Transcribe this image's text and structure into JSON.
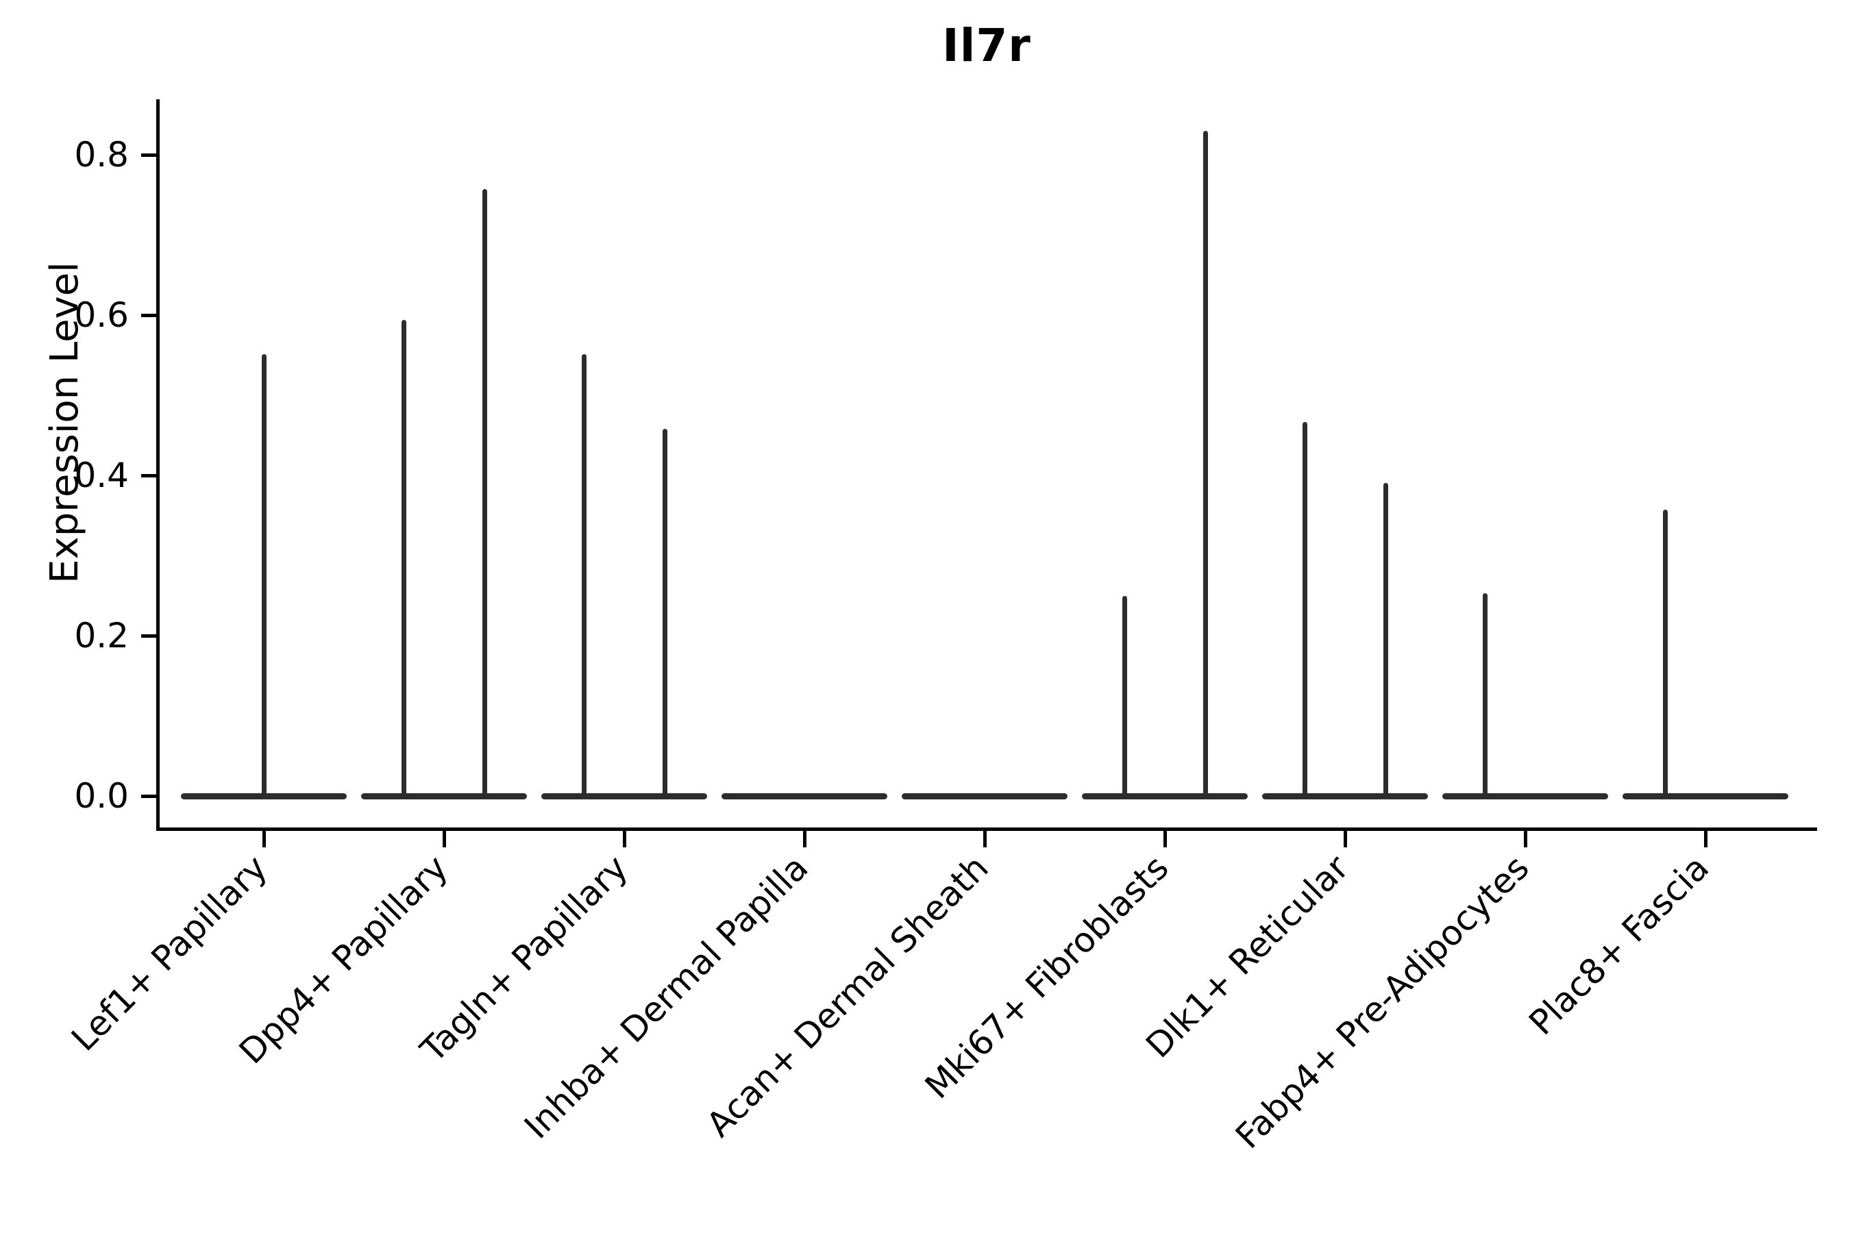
{
  "chart_data": {
    "type": "violin",
    "title": "Il7r",
    "ylabel": "Expression Level",
    "xlabel": "",
    "ylim": [
      0,
      0.87
    ],
    "yticks": [
      0.0,
      0.2,
      0.4,
      0.6,
      0.8
    ],
    "grid": false,
    "legend": false,
    "violin_color": "#2d2d2d",
    "axis_color": "#000000",
    "description": "Single-cell expression violin plot; each violin is a wide flat base at 0 with a thin spike up to the max expression value. Categories with two groups show two dodged half-width violins.",
    "categories": [
      "Lef1+ Papillary",
      "Dpp4+ Papillary",
      "Tagln+ Papillary",
      "Inhba+ Dermal Papilla",
      "Acan+ Dermal Sheath",
      "Mki67+ Fibroblasts",
      "Dlk1+ Reticular",
      "Fabp4+ Pre-Adipocytes",
      "Plac8+ Fascia"
    ],
    "series": [
      {
        "category": "Lef1+ Papillary",
        "groups": [
          {
            "side": "center",
            "max": 0.551
          }
        ]
      },
      {
        "category": "Dpp4+ Papillary",
        "groups": [
          {
            "side": "left",
            "max": 0.594
          },
          {
            "side": "right",
            "max": 0.757
          }
        ]
      },
      {
        "category": "Tagln+ Papillary",
        "groups": [
          {
            "side": "left",
            "max": 0.551
          },
          {
            "side": "right",
            "max": 0.458
          }
        ]
      },
      {
        "category": "Inhba+ Dermal Papilla",
        "groups": [
          {
            "side": "center",
            "max": 0
          }
        ]
      },
      {
        "category": "Acan+ Dermal Sheath",
        "groups": [
          {
            "side": "center",
            "max": 0
          }
        ]
      },
      {
        "category": "Mki67+ Fibroblasts",
        "groups": [
          {
            "side": "left",
            "max": 0.25
          },
          {
            "side": "right",
            "max": 0.83
          }
        ]
      },
      {
        "category": "Dlk1+ Reticular",
        "groups": [
          {
            "side": "left",
            "max": 0.467
          },
          {
            "side": "right",
            "max": 0.391
          }
        ]
      },
      {
        "category": "Fabp4+ Pre-Adipocytes",
        "groups": [
          {
            "side": "left",
            "max": 0.253
          },
          {
            "side": "right",
            "max": 0
          }
        ]
      },
      {
        "category": "Plac8+ Fascia",
        "groups": [
          {
            "side": "left",
            "max": 0.357
          },
          {
            "side": "right",
            "max": 0
          }
        ]
      }
    ]
  }
}
